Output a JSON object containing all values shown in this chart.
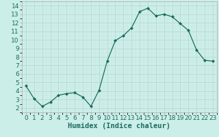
{
  "x": [
    0,
    1,
    2,
    3,
    4,
    5,
    6,
    7,
    8,
    9,
    10,
    11,
    12,
    13,
    14,
    15,
    16,
    17,
    18,
    19,
    20,
    21,
    22,
    23
  ],
  "y": [
    4.6,
    3.1,
    2.2,
    2.7,
    3.5,
    3.7,
    3.8,
    3.3,
    2.2,
    4.1,
    7.5,
    9.9,
    10.5,
    11.4,
    13.3,
    13.7,
    12.8,
    13.0,
    12.7,
    11.9,
    11.1,
    8.8,
    7.6,
    7.5
  ],
  "line_color": "#1a6b5e",
  "marker": "D",
  "marker_size": 2.0,
  "bg_color": "#cceee8",
  "grid_major_color": "#b8d8d4",
  "grid_minor_color": "#c8e6e2",
  "xlabel": "Humidex (Indice chaleur)",
  "ylim": [
    1.5,
    14.5
  ],
  "xlim": [
    -0.5,
    23.5
  ],
  "yticks": [
    2,
    3,
    4,
    5,
    6,
    7,
    8,
    9,
    10,
    11,
    12,
    13,
    14
  ],
  "xticks": [
    0,
    1,
    2,
    3,
    4,
    5,
    6,
    7,
    8,
    9,
    10,
    11,
    12,
    13,
    14,
    15,
    16,
    17,
    18,
    19,
    20,
    21,
    22,
    23
  ],
  "tick_fontsize": 6.5,
  "xlabel_fontsize": 7.5,
  "spine_color": "#aaaaaa",
  "tick_color": "#1a6b5e"
}
